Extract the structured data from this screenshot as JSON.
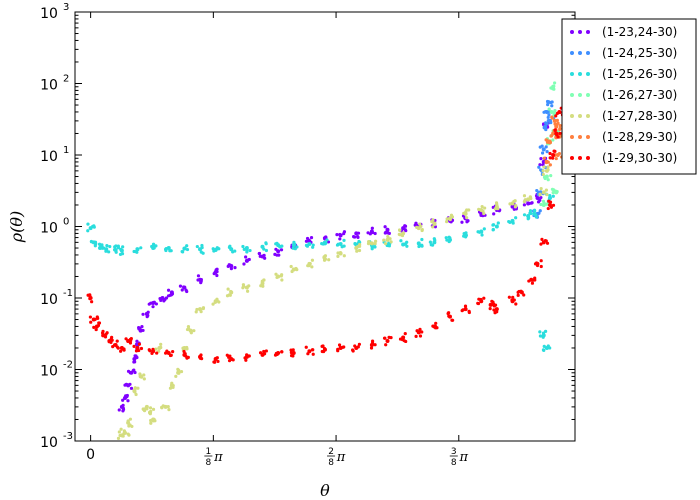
{
  "chart_data": {
    "type": "scatter",
    "title": "",
    "xlabel": "θ",
    "ylabel": "ρ(θ)",
    "xlim": [
      -0.05,
      1.55
    ],
    "ylim": [
      0.001,
      1000
    ],
    "yscale": "log",
    "xticks": [
      {
        "value": 0,
        "label": "0"
      },
      {
        "value": 0.3927,
        "label": "1/8 π"
      },
      {
        "value": 0.7854,
        "label": "2/8 π"
      },
      {
        "value": 1.1781,
        "label": "3/8 π"
      }
    ],
    "yticks": [
      {
        "value": 0.001,
        "exp": "-3"
      },
      {
        "value": 0.01,
        "exp": "-2"
      },
      {
        "value": 0.1,
        "exp": "-1"
      },
      {
        "value": 1,
        "exp": "0"
      },
      {
        "value": 10,
        "exp": "1"
      },
      {
        "value": 100,
        "exp": "2"
      },
      {
        "value": 1000,
        "exp": "3"
      }
    ],
    "ytick_base": "10",
    "grid": false,
    "legend_position": "top-right-outside",
    "series": [
      {
        "name": "(1-23,24-30)",
        "color": "#8000ff",
        "x": [
          0.1,
          0.11,
          0.12,
          0.13,
          0.14,
          0.15,
          0.16,
          0.18,
          0.2,
          0.23,
          0.26,
          0.3,
          0.35,
          0.4,
          0.45,
          0.5,
          0.55,
          0.6,
          0.65,
          0.7,
          0.75,
          0.8,
          0.85,
          0.9,
          0.95,
          1.0,
          1.05,
          1.1,
          1.15,
          1.2,
          1.25,
          1.3,
          1.35,
          1.4,
          1.43,
          1.45,
          1.46
        ],
        "y": [
          0.003,
          0.004,
          0.006,
          0.009,
          0.014,
          0.022,
          0.035,
          0.06,
          0.085,
          0.1,
          0.12,
          0.14,
          0.18,
          0.23,
          0.28,
          0.33,
          0.38,
          0.45,
          0.55,
          0.62,
          0.68,
          0.75,
          0.8,
          0.85,
          0.9,
          0.95,
          1.0,
          1.1,
          1.2,
          1.3,
          1.5,
          1.7,
          1.9,
          2.1,
          2.5,
          8,
          25
        ]
      },
      {
        "name": "(1-24,25-30)",
        "color": "#3f8fff",
        "x": [
          1.43,
          1.44,
          1.445,
          1.45,
          1.455,
          1.46,
          1.465,
          1.47
        ],
        "y": [
          1.5,
          3,
          6,
          12,
          25,
          40,
          55,
          30
        ]
      },
      {
        "name": "(1-25,26-30)",
        "color": "#2adddd",
        "x": [
          0,
          0.01,
          0.03,
          0.05,
          0.08,
          0.1,
          0.15,
          0.2,
          0.25,
          0.3,
          0.35,
          0.4,
          0.45,
          0.5,
          0.55,
          0.6,
          0.65,
          0.7,
          0.75,
          0.8,
          0.85,
          0.9,
          0.95,
          1.0,
          1.05,
          1.1,
          1.15,
          1.2,
          1.25,
          1.3,
          1.35,
          1.4,
          1.42,
          1.45,
          1.46,
          1.47
        ],
        "y": [
          0.95,
          0.6,
          0.5,
          0.48,
          0.47,
          0.46,
          0.48,
          0.5,
          0.5,
          0.49,
          0.48,
          0.47,
          0.48,
          0.5,
          0.52,
          0.55,
          0.55,
          0.57,
          0.58,
          0.57,
          0.56,
          0.55,
          0.55,
          0.56,
          0.58,
          0.6,
          0.65,
          0.75,
          0.85,
          1.0,
          1.2,
          1.4,
          1.5,
          0.03,
          0.02,
          2.5
        ]
      },
      {
        "name": "(1-26,27-30)",
        "color": "#80ffb4",
        "x": [
          1.45,
          1.46,
          1.47,
          1.475,
          1.48,
          1.485,
          1.49
        ],
        "y": [
          2,
          5,
          15,
          40,
          90,
          20,
          3
        ]
      },
      {
        "name": "(1-27,28-30)",
        "color": "#d4dd80",
        "x": [
          0.1,
          0.11,
          0.12,
          0.14,
          0.16,
          0.18,
          0.19,
          0.2,
          0.22,
          0.24,
          0.26,
          0.28,
          0.3,
          0.32,
          0.35,
          0.4,
          0.45,
          0.5,
          0.55,
          0.6,
          0.65,
          0.7,
          0.75,
          0.8,
          0.85,
          0.9,
          0.95,
          1.0,
          1.05,
          1.1,
          1.15,
          1.2,
          1.25,
          1.3,
          1.35,
          1.4,
          1.45,
          1.46
        ],
        "y": [
          0.0012,
          0.0013,
          0.0018,
          0.005,
          0.008,
          0.003,
          0.0025,
          0.002,
          0.02,
          0.003,
          0.006,
          0.009,
          0.02,
          0.035,
          0.07,
          0.09,
          0.12,
          0.14,
          0.16,
          0.2,
          0.25,
          0.3,
          0.35,
          0.42,
          0.5,
          0.58,
          0.65,
          0.8,
          0.95,
          1.1,
          1.3,
          1.5,
          1.7,
          1.9,
          2.1,
          2.4,
          3,
          6
        ]
      },
      {
        "name": "(1-28,29-30)",
        "color": "#ff7f3f",
        "x": [
          1.46,
          1.47,
          1.48,
          1.485,
          1.49,
          1.495,
          1.5
        ],
        "y": [
          8,
          15,
          20,
          30,
          25,
          10,
          18
        ]
      },
      {
        "name": "(1-29,30-30)",
        "color": "#ff0000",
        "x": [
          0,
          0.01,
          0.02,
          0.04,
          0.06,
          0.08,
          0.1,
          0.12,
          0.15,
          0.2,
          0.25,
          0.3,
          0.35,
          0.4,
          0.45,
          0.5,
          0.55,
          0.6,
          0.65,
          0.7,
          0.75,
          0.8,
          0.85,
          0.9,
          0.95,
          1.0,
          1.05,
          1.1,
          1.15,
          1.2,
          1.25,
          1.28,
          1.3,
          1.35,
          1.38,
          1.41,
          1.43,
          1.45,
          1.47,
          1.48,
          1.49,
          1.5
        ],
        "y": [
          0.1,
          0.05,
          0.04,
          0.03,
          0.025,
          0.022,
          0.02,
          0.025,
          0.02,
          0.018,
          0.017,
          0.016,
          0.015,
          0.014,
          0.014,
          0.015,
          0.016,
          0.017,
          0.017,
          0.018,
          0.019,
          0.02,
          0.02,
          0.022,
          0.025,
          0.028,
          0.033,
          0.04,
          0.055,
          0.07,
          0.09,
          0.08,
          0.07,
          0.09,
          0.12,
          0.18,
          0.3,
          0.6,
          2,
          10,
          20,
          40
        ]
      }
    ]
  }
}
